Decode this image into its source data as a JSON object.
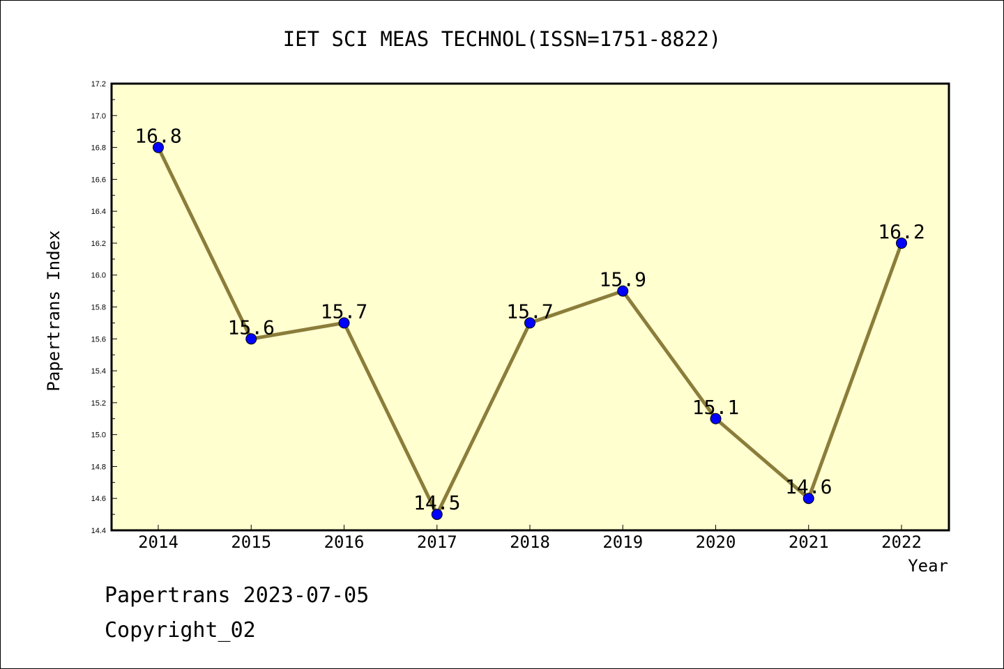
{
  "chart_data": {
    "type": "line",
    "title": "IET SCI MEAS TECHNOL(ISSN=1751-8822)",
    "xlabel": "Year",
    "ylabel": "Papertrans Index",
    "categories": [
      "2014",
      "2015",
      "2016",
      "2017",
      "2018",
      "2019",
      "2020",
      "2021",
      "2022"
    ],
    "values": [
      16.8,
      15.6,
      15.7,
      14.5,
      15.7,
      15.9,
      15.1,
      14.6,
      16.2
    ],
    "data_labels": [
      "16.8",
      "15.6",
      "15.7",
      "14.5",
      "15.7",
      "15.9",
      "15.1",
      "14.6",
      "16.2"
    ],
    "ylim": [
      14.4,
      17.2
    ],
    "yticks": [
      "14.4",
      "14.6",
      "14.8",
      "15.0",
      "15.2",
      "15.4",
      "15.6",
      "15.8",
      "16.0",
      "16.2",
      "16.4",
      "16.6",
      "16.8",
      "17.0",
      "17.2"
    ],
    "grid": false,
    "legend": "none",
    "colors": {
      "plot_background": "#ffffd0",
      "line": "#8b7d3a",
      "marker": "#0000ff"
    }
  },
  "footer": {
    "line1": "Papertrans 2023-07-05",
    "line2": "Copyright_02"
  }
}
